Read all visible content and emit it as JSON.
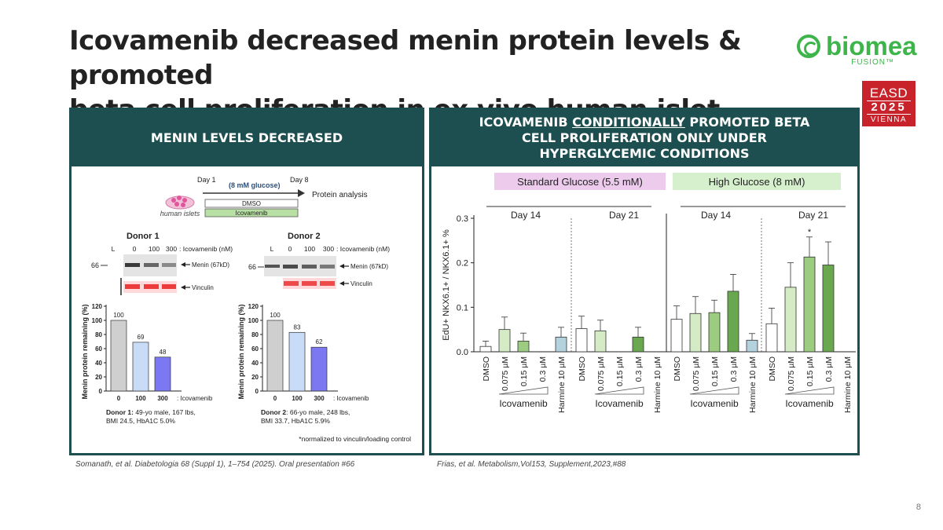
{
  "slide": {
    "title_line1": "Icovamenib decreased menin protein levels & promoted",
    "title_line2": "beta cell proliferation in ex vivo human islet cultures",
    "logo_word": "biomea",
    "logo_sub": "FUSION™",
    "easd_top": "EASD",
    "easd_year": "2025",
    "easd_city": "VIENNA",
    "page_number": "8",
    "ref_left": "Somanath, et al. Diabetologia 68 (Suppl 1), 1–754 (2025). Oral presentation #66",
    "ref_right": "Frias, et al. Metabolism,Vol153, Supplement,2023,#88"
  },
  "left_panel": {
    "header": "MENIN LEVELS DECREASED",
    "timeline": {
      "day1": "Day 1",
      "day8": "Day 8",
      "glucose": "(8 mM glucose)",
      "protein_analysis": "Protein analysis",
      "dmso": "DMSO",
      "icovamenib": "Icovamenib",
      "islets_label": "human islets"
    },
    "blots": [
      {
        "donor": "Donor 1",
        "lanes": [
          "L",
          "0",
          "100",
          "300"
        ],
        "lane_unit": ": Icovamenib (nM)",
        "marker": "66",
        "menin_label": "Menin (67kD)",
        "vinculin_label": "Vinculin"
      },
      {
        "donor": "Donor 2",
        "lanes": [
          "L",
          "0",
          "100",
          "300"
        ],
        "lane_unit": ": Icovamenib (nM)",
        "marker": "66",
        "menin_label": "Menin (67kD)",
        "vinculin_label": "Vinculin"
      }
    ],
    "footnote": "*normalized to vinculin/loading control",
    "donor_info": [
      {
        "bold": "Donor 1:",
        "line1": " 49-yo male, 167 lbs,",
        "line2": "BMI 24.5, HbA1C 5.0%"
      },
      {
        "bold": "Donor 2",
        "line1": ": 66-yo male, 248 lbs,",
        "line2": "BMI 33.7, HbA1C 5.9%"
      }
    ]
  },
  "right_panel": {
    "header_pre": "ICOVAMENIB ",
    "header_underlined": "CONDITIONALLY",
    "header_post": " PROMOTED BETA CELL PROLIFERATION ONLY UNDER HYPERGLYCEMIC CONDITIONS",
    "standard_glucose": "Standard Glucose (5.5 mM)",
    "high_glucose": "High Glucose (8 mM)",
    "day_labels": [
      "Day 14",
      "Day 21",
      "Day 14",
      "Day 21"
    ],
    "group_label": "Icovamenib",
    "significance": "*"
  },
  "colors": {
    "panel": "#1d4f51",
    "green_dark": "#6aa84f",
    "green_mid": "#9bcc7f",
    "green_light": "#d5ebc5",
    "harmine": "#b3d2de",
    "donor_gray": "#cfcfcf",
    "donor_100": "#c8dcf7",
    "donor_300": "#7b78f2",
    "std_glucose_bg": "#eccbec",
    "high_glucose_bg": "#d6efcd",
    "brand_green": "#3db54a",
    "easd_red": "#c8222a"
  },
  "chart_data": [
    {
      "type": "bar",
      "categories": [
        "0",
        "100",
        "300"
      ],
      "values": [
        100,
        69,
        48
      ],
      "data_labels": [
        "100",
        "69",
        "48"
      ],
      "xlabel": ": Icovamenib",
      "ylabel": "Menin protein remaining (%)",
      "ylim": [
        0,
        120
      ],
      "yticks": [
        "0",
        "20",
        "40",
        "60",
        "80",
        "100",
        "120"
      ]
    },
    {
      "type": "bar",
      "categories": [
        "0",
        "100",
        "300"
      ],
      "values": [
        100,
        83,
        62
      ],
      "data_labels": [
        "100",
        "83",
        "62"
      ],
      "xlabel": ": Icovamenib",
      "ylabel": "Menin protein remaining (%)",
      "ylim": [
        0,
        120
      ],
      "yticks": [
        "0",
        "20",
        "40",
        "60",
        "80",
        "100",
        "120"
      ]
    },
    {
      "type": "bar",
      "ylabel": "EdU+ NKX6.1+ / NKX6.1+ %",
      "ylim": [
        0,
        0.3
      ],
      "yticks": [
        "0.0",
        "0.1",
        "0.2",
        "0.3"
      ],
      "categories": [
        "DMSO",
        "0.075 µM",
        "0.15 µM",
        "0.3 µM",
        "Harmine 10 µM"
      ],
      "groups": [
        {
          "glucose": "Standard Glucose (5.5 mM)",
          "day": "Day 14",
          "values": [
            0.012,
            0.05,
            0.024,
            0,
            0.033
          ],
          "errors": [
            0.012,
            0.028,
            0.018,
            0,
            0.022
          ]
        },
        {
          "glucose": "Standard Glucose (5.5 mM)",
          "day": "Day 21",
          "values": [
            0.052,
            0.047,
            0,
            0.033,
            0
          ],
          "errors": [
            0.028,
            0.024,
            0,
            0.022,
            0
          ]
        },
        {
          "glucose": "High Glucose (8 mM)",
          "day": "Day 14",
          "values": [
            0.073,
            0.086,
            0.088,
            0.136,
            0.026
          ],
          "errors": [
            0.03,
            0.038,
            0.028,
            0.038,
            0.015
          ]
        },
        {
          "glucose": "High Glucose (8 mM)",
          "day": "Day 21",
          "values": [
            0.063,
            0.145,
            0.213,
            0.195,
            0
          ],
          "errors": [
            0.035,
            0.055,
            0.045,
            0.052,
            0
          ]
        }
      ],
      "significant": [
        {
          "group": 3,
          "category": "0.15 µM",
          "label": "*"
        }
      ]
    }
  ]
}
